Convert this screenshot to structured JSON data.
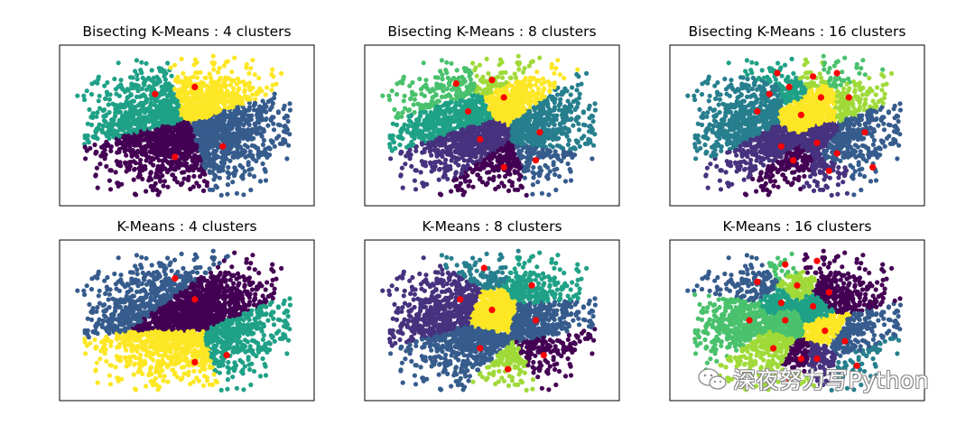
{
  "colors": {
    "viridis": [
      "#440154",
      "#46327e",
      "#365c8d",
      "#277f8e",
      "#1fa187",
      "#4ac16d",
      "#a0da39",
      "#fde725"
    ],
    "centroid": "#ff0000",
    "frame": "#000000"
  },
  "chart_data": [
    {
      "type": "scatter",
      "title": "Bisecting K-Means : 4 clusters",
      "n_clusters": 4,
      "xlim": [
        -3.2,
        3.2
      ],
      "ylim": [
        -2.3,
        2.3
      ],
      "centers": [
        [
          -0.8,
          0.9
        ],
        [
          0.2,
          1.1
        ],
        [
          0.9,
          -0.6
        ],
        [
          -0.3,
          -0.9
        ]
      ],
      "center_colors": [
        4,
        7,
        2,
        0
      ]
    },
    {
      "type": "scatter",
      "title": "Bisecting K-Means : 8 clusters",
      "n_clusters": 8,
      "xlim": [
        -3.2,
        3.2
      ],
      "ylim": [
        -2.3,
        2.3
      ],
      "centers": [
        [
          -0.9,
          1.2
        ],
        [
          0.0,
          1.3
        ],
        [
          -0.6,
          0.4
        ],
        [
          0.3,
          0.8
        ],
        [
          -0.3,
          -0.4
        ],
        [
          1.2,
          -0.2
        ],
        [
          0.3,
          -1.2
        ],
        [
          1.1,
          -1.0
        ]
      ],
      "center_colors": [
        5,
        6,
        4,
        7,
        1,
        3,
        0,
        2
      ]
    },
    {
      "type": "scatter",
      "title": "Bisecting K-Means : 16 clusters",
      "n_clusters": 16,
      "xlim": [
        -3.2,
        3.2
      ],
      "ylim": [
        -2.3,
        2.3
      ],
      "centers": [
        [
          -0.5,
          1.5
        ],
        [
          0.4,
          1.4
        ],
        [
          1.0,
          1.5
        ],
        [
          -0.7,
          0.9
        ],
        [
          -0.2,
          1.1
        ],
        [
          0.6,
          0.8
        ],
        [
          0.1,
          0.3
        ],
        [
          1.3,
          0.8
        ],
        [
          -1.0,
          0.4
        ],
        [
          1.7,
          -0.2
        ],
        [
          -0.4,
          -0.6
        ],
        [
          0.5,
          -0.5
        ],
        [
          1.0,
          -0.8
        ],
        [
          -0.1,
          -1.0
        ],
        [
          0.8,
          -1.3
        ],
        [
          1.9,
          -1.2
        ]
      ],
      "center_colors": [
        4,
        6,
        5,
        3,
        4,
        7,
        7,
        6,
        3,
        2,
        1,
        1,
        2,
        0,
        1,
        2
      ]
    },
    {
      "type": "scatter",
      "title": "K-Means : 4 clusters",
      "n_clusters": 4,
      "xlim": [
        -3.2,
        3.2
      ],
      "ylim": [
        -2.3,
        2.3
      ],
      "centers": [
        [
          -0.3,
          1.2
        ],
        [
          0.2,
          0.6
        ],
        [
          0.2,
          -1.2
        ],
        [
          1.0,
          -1.0
        ]
      ],
      "center_colors": [
        2,
        0,
        7,
        4
      ]
    },
    {
      "type": "scatter",
      "title": "K-Means : 8 clusters",
      "n_clusters": 8,
      "xlim": [
        -3.2,
        3.2
      ],
      "ylim": [
        -2.3,
        2.3
      ],
      "centers": [
        [
          -0.2,
          1.5
        ],
        [
          1.0,
          1.0
        ],
        [
          -0.8,
          0.6
        ],
        [
          0.0,
          0.3
        ],
        [
          1.1,
          0.0
        ],
        [
          -0.3,
          -0.8
        ],
        [
          0.4,
          -1.4
        ],
        [
          1.3,
          -1.0
        ]
      ],
      "center_colors": [
        3,
        4,
        1,
        7,
        2,
        2,
        6,
        0
      ]
    },
    {
      "type": "scatter",
      "title": "K-Means : 16 clusters",
      "n_clusters": 16,
      "xlim": [
        -3.2,
        3.2
      ],
      "ylim": [
        -2.3,
        2.3
      ],
      "centers": [
        [
          -0.3,
          1.6
        ],
        [
          0.5,
          1.7
        ],
        [
          -1.0,
          1.1
        ],
        [
          0.0,
          1.0
        ],
        [
          0.8,
          0.8
        ],
        [
          -0.4,
          0.5
        ],
        [
          0.4,
          0.4
        ],
        [
          -1.2,
          0.0
        ],
        [
          -0.3,
          0.0
        ],
        [
          0.7,
          -0.3
        ],
        [
          -0.6,
          -0.8
        ],
        [
          0.1,
          -1.1
        ],
        [
          1.2,
          -0.6
        ],
        [
          0.5,
          -1.1
        ],
        [
          -0.2,
          -1.7
        ],
        [
          1.5,
          -1.3
        ]
      ],
      "center_colors": [
        5,
        0,
        2,
        6,
        0,
        4,
        4,
        5,
        5,
        7,
        6,
        0,
        2,
        1,
        6,
        3
      ]
    }
  ],
  "watermark": {
    "text": "深夜努力写Python"
  }
}
